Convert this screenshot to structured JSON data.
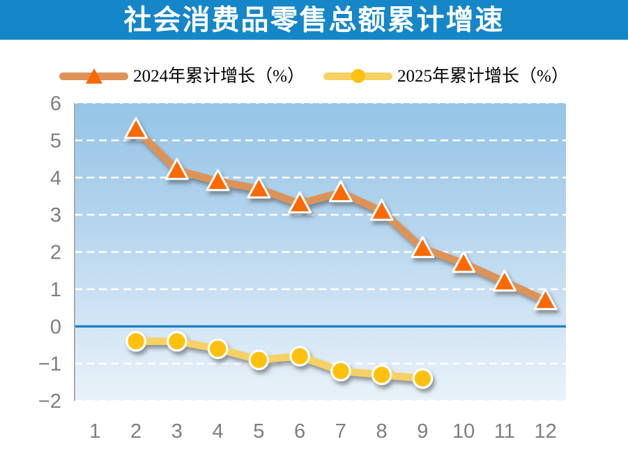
{
  "header": {
    "title": "社会消费品零售总额累计增速"
  },
  "legend": {
    "items": [
      {
        "label": "2024年累计增长（%）",
        "marker": "triangle-icon"
      },
      {
        "label": "2025年累计增长（%）",
        "marker": "circle-icon"
      }
    ]
  },
  "colors": {
    "header_bg": "#1586C8",
    "header_text": "#FFFFFF",
    "plot_bg_top": "#94C4E6",
    "plot_bg_mid": "#B9D7EF",
    "plot_bg_bottom": "#E9F2F9",
    "gridline": "#FFFFFF",
    "zero_line": "#177EC0",
    "axis_line": "#ABABAB",
    "tick_text": "#7E7E7E",
    "legend_text": "#000000"
  },
  "chart_data": {
    "type": "line",
    "title": "社会消费品零售总额累计增速",
    "x_categories": [
      "1",
      "2",
      "3",
      "4",
      "5",
      "6",
      "7",
      "8",
      "9",
      "10",
      "11",
      "12"
    ],
    "xlabel": "",
    "ylabel": "",
    "ylim": [
      -2,
      6
    ],
    "y_tick_values": [
      6,
      5,
      4,
      3,
      2,
      1,
      0,
      -1,
      -2
    ],
    "y_tick_labels": [
      "6",
      "5",
      "4",
      "3",
      "2",
      "1",
      "0",
      "−1",
      "−2"
    ],
    "grid": "horizontal-white-dashed",
    "legend_position": "top",
    "series": [
      {
        "name": "2024年累计增长（%）",
        "marker": "triangle",
        "start_month": 2,
        "months": [
          2,
          3,
          4,
          5,
          6,
          7,
          8,
          9,
          10,
          11,
          12
        ],
        "values": [
          5.3,
          4.2,
          3.9,
          3.7,
          3.3,
          3.6,
          3.1,
          2.1,
          1.7,
          1.2,
          0.7
        ],
        "line_color": "#DD9358",
        "marker_color": "#FB6906",
        "marker_border": "#FFFFFF"
      },
      {
        "name": "2025年累计增长（%）",
        "marker": "circle",
        "start_month": 2,
        "months": [
          2,
          3,
          4,
          5,
          6,
          7,
          8,
          9
        ],
        "values": [
          -0.4,
          -0.4,
          -0.6,
          -0.9,
          -0.8,
          -1.2,
          -1.3,
          -1.4
        ],
        "line_color": "#F6D164",
        "marker_color": "#FFC110",
        "marker_border": "#FFFFFF"
      }
    ]
  }
}
